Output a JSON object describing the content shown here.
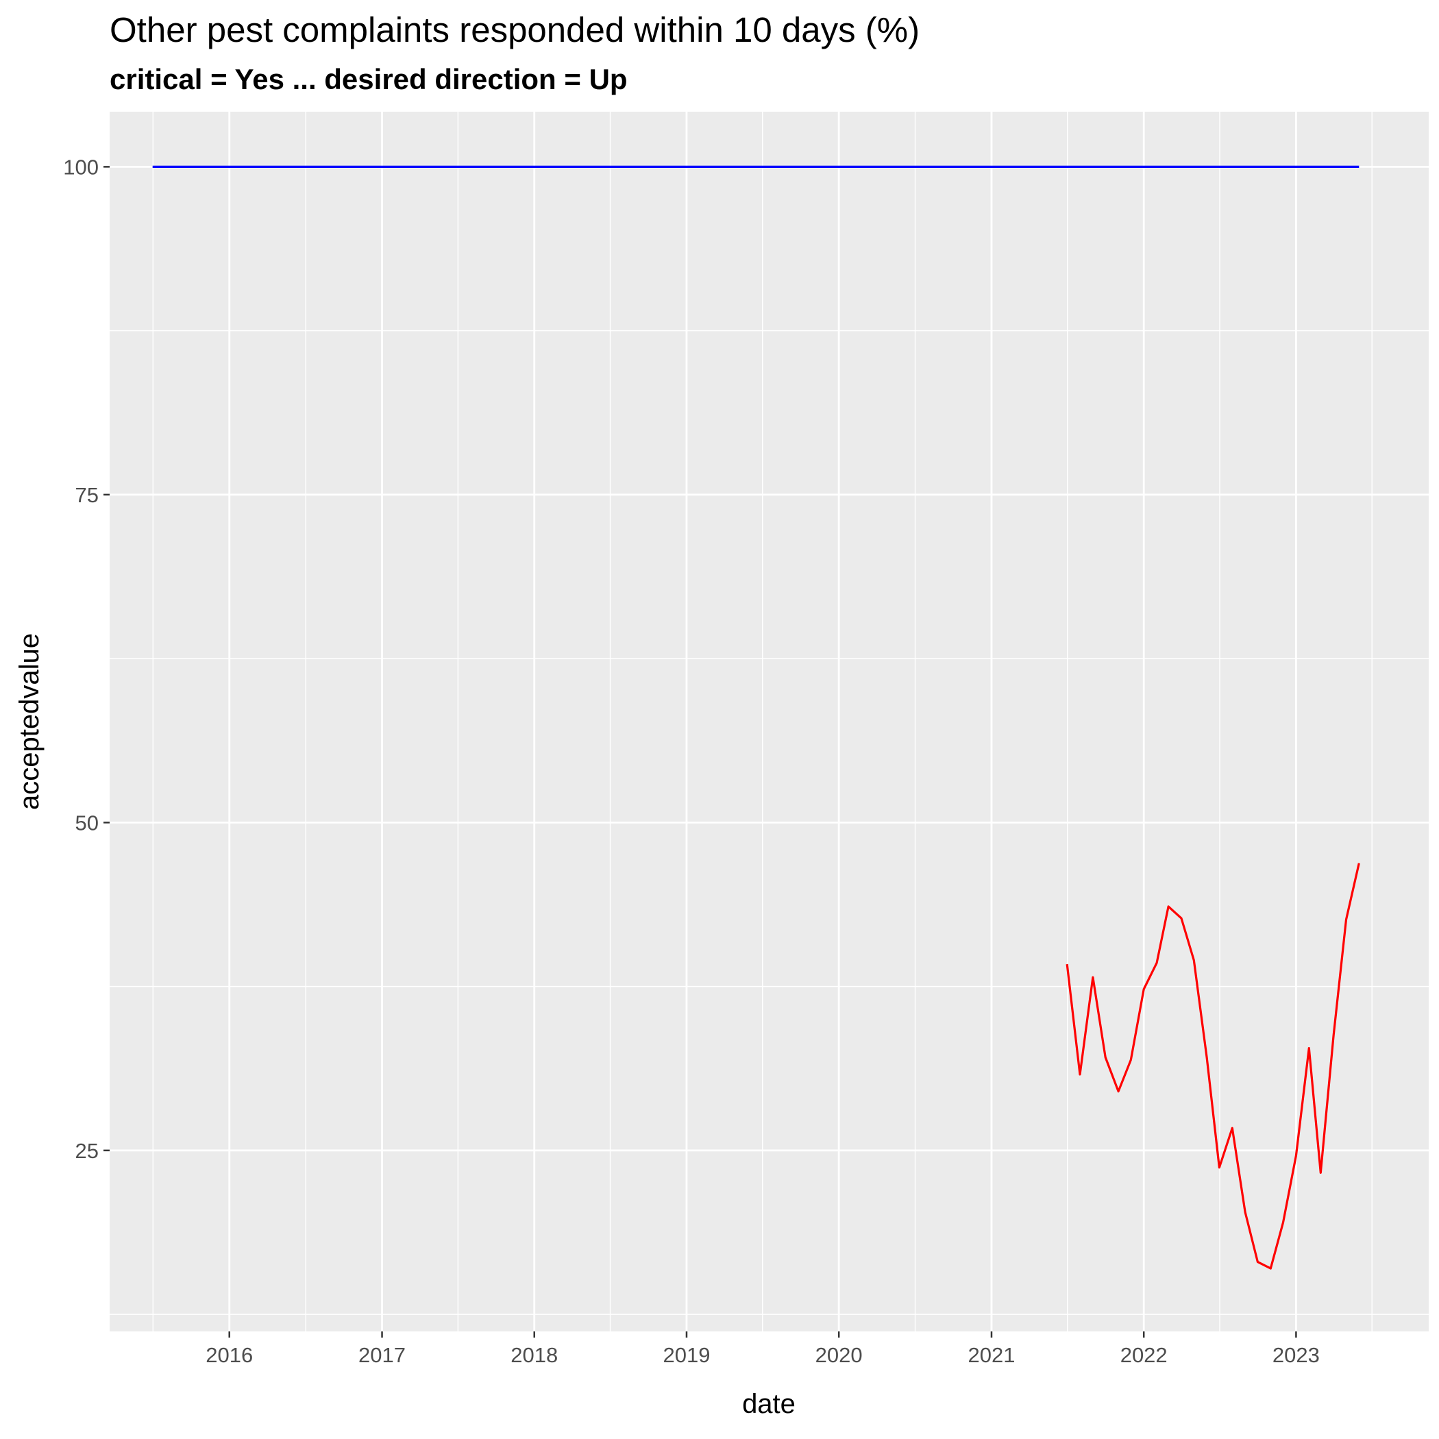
{
  "title": "Other pest complaints responded within 10 days (%)",
  "subtitle": "critical = Yes ... desired direction = Up",
  "chart_data": {
    "type": "line",
    "xlabel": "date",
    "ylabel": "acceptedvalue",
    "x_axis_type": "date",
    "xlim": [
      "2015-03-20",
      "2023-11-15"
    ],
    "ylim": [
      11.2,
      104.2
    ],
    "x_ticks": [
      "2016",
      "2017",
      "2018",
      "2019",
      "2020",
      "2021",
      "2022",
      "2023"
    ],
    "y_ticks": [
      25,
      50,
      75,
      100
    ],
    "grid": true,
    "series": [
      {
        "color": "#0000ff",
        "points": [
          [
            "2015-07-01",
            100
          ],
          [
            "2023-06-01",
            100
          ]
        ]
      },
      {
        "color": "#ff0000",
        "points": [
          [
            "2021-07-01",
            39.2
          ],
          [
            "2021-08-01",
            30.8
          ],
          [
            "2021-09-01",
            38.2
          ],
          [
            "2021-10-01",
            32.1
          ],
          [
            "2021-11-01",
            29.5
          ],
          [
            "2021-12-01",
            31.9
          ],
          [
            "2022-01-01",
            37.3
          ],
          [
            "2022-02-01",
            39.3
          ],
          [
            "2022-03-01",
            43.6
          ],
          [
            "2022-04-01",
            42.7
          ],
          [
            "2022-05-01",
            39.5
          ],
          [
            "2022-06-01",
            32.1
          ],
          [
            "2022-07-01",
            23.7
          ],
          [
            "2022-08-01",
            26.7
          ],
          [
            "2022-09-01",
            20.3
          ],
          [
            "2022-10-01",
            16.5
          ],
          [
            "2022-11-01",
            16.0
          ],
          [
            "2022-12-01",
            19.5
          ],
          [
            "2023-01-01",
            24.6
          ],
          [
            "2023-02-01",
            32.8
          ],
          [
            "2023-03-01",
            23.3
          ],
          [
            "2023-04-01",
            33.8
          ],
          [
            "2023-05-01",
            42.6
          ],
          [
            "2023-06-01",
            46.9
          ]
        ]
      }
    ]
  }
}
